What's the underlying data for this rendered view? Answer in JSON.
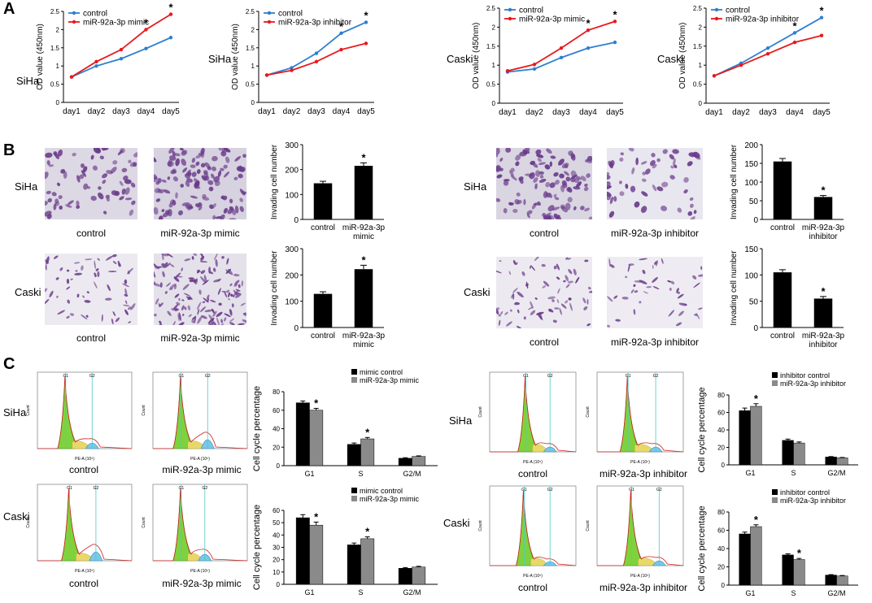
{
  "panels": {
    "A": "A",
    "B": "B",
    "C": "C"
  },
  "chart_data": [
    {
      "id": "lineA1",
      "type": "line",
      "row_label": "SiHa",
      "ylabel": "OD value (450nm)",
      "categories": [
        "day1",
        "day2",
        "day3",
        "day4",
        "day5"
      ],
      "ylim": [
        0,
        2.5
      ],
      "yticks": [
        "0",
        "0.5",
        "1",
        "1.5",
        "2",
        "2.5"
      ],
      "series": [
        {
          "name": "control",
          "color": "#2e7fd0",
          "values": [
            0.7,
            1.0,
            1.2,
            1.48,
            1.78
          ]
        },
        {
          "name": "miR-92a-3p mimic",
          "color": "#e8191c",
          "values": [
            0.7,
            1.12,
            1.45,
            2.0,
            2.42
          ]
        }
      ],
      "sig": [
        3,
        4
      ],
      "legend": "top-left"
    },
    {
      "id": "lineA2",
      "type": "line",
      "row_label": "SiHa",
      "ylabel": "OD value (450nm)",
      "categories": [
        "day1",
        "day2",
        "day3",
        "day4",
        "day5"
      ],
      "ylim": [
        0,
        2.5
      ],
      "yticks": [
        "0",
        "0.5",
        "1",
        "1.5",
        "2",
        "2.5"
      ],
      "series": [
        {
          "name": "control",
          "color": "#2e7fd0",
          "values": [
            0.75,
            0.95,
            1.35,
            1.9,
            2.2
          ]
        },
        {
          "name": "miR-92a-3p inhibitor",
          "color": "#e8191c",
          "values": [
            0.75,
            0.88,
            1.12,
            1.45,
            1.62
          ]
        }
      ],
      "sig": [
        3,
        4
      ],
      "legend": "top-left"
    },
    {
      "id": "lineA3",
      "type": "line",
      "row_label": "Caski",
      "ylabel": "OD value (450nm)",
      "categories": [
        "day1",
        "day2",
        "day3",
        "day4",
        "day5"
      ],
      "ylim": [
        0,
        2.5
      ],
      "yticks": [
        "0",
        "0.5",
        "1",
        "1.5",
        "2",
        "2.5"
      ],
      "series": [
        {
          "name": "control",
          "color": "#2e7fd0",
          "values": [
            0.82,
            0.9,
            1.2,
            1.45,
            1.6
          ]
        },
        {
          "name": "miR-92a-3p mimic",
          "color": "#e8191c",
          "values": [
            0.85,
            1.02,
            1.45,
            1.92,
            2.15
          ]
        }
      ],
      "sig": [
        3,
        4
      ],
      "legend": "top-left"
    },
    {
      "id": "lineA4",
      "type": "line",
      "row_label": "Caski",
      "ylabel": "OD value (450nm)",
      "categories": [
        "day1",
        "day2",
        "day3",
        "day4",
        "day5"
      ],
      "ylim": [
        0,
        2.5
      ],
      "yticks": [
        "0",
        "0.5",
        "1",
        "1.5",
        "2",
        "2.5"
      ],
      "series": [
        {
          "name": "control",
          "color": "#2e7fd0",
          "values": [
            0.72,
            1.05,
            1.45,
            1.85,
            2.25
          ]
        },
        {
          "name": "miR-92a-3p inhibitor",
          "color": "#e8191c",
          "values": [
            0.72,
            1.0,
            1.3,
            1.6,
            1.78
          ]
        }
      ],
      "sig": [
        3,
        4
      ],
      "legend": "top-left"
    },
    {
      "id": "barB1",
      "type": "bar",
      "ylabel": "Invading cell number",
      "categories": [
        "control",
        "miR-92a-3p\nmimic"
      ],
      "ylim": [
        0,
        300
      ],
      "yticks": [
        "0",
        "100",
        "200",
        "300"
      ],
      "values": [
        145,
        215
      ],
      "errors": [
        8,
        12
      ],
      "sig": [
        1
      ]
    },
    {
      "id": "barB2",
      "type": "bar",
      "ylabel": "Invading cell number",
      "categories": [
        "control",
        "miR-92a-3p\ninhibitor"
      ],
      "ylim": [
        0,
        200
      ],
      "yticks": [
        "0",
        "50",
        "100",
        "150",
        "200"
      ],
      "values": [
        155,
        60
      ],
      "errors": [
        8,
        4
      ],
      "sig": [
        1
      ]
    },
    {
      "id": "barB3",
      "type": "bar",
      "ylabel": "Invading cell number",
      "categories": [
        "control",
        "miR-92a-3p\nmimic"
      ],
      "ylim": [
        0,
        300
      ],
      "yticks": [
        "0",
        "100",
        "200",
        "300"
      ],
      "values": [
        128,
        222
      ],
      "errors": [
        8,
        15
      ],
      "sig": [
        1
      ]
    },
    {
      "id": "barB4",
      "type": "bar",
      "ylabel": "Invading cell number",
      "categories": [
        "control",
        "miR-92a-3p\ninhibitor"
      ],
      "ylim": [
        0,
        150
      ],
      "yticks": [
        "0",
        "50",
        "100",
        "150"
      ],
      "values": [
        105,
        55
      ],
      "errors": [
        5,
        4
      ],
      "sig": [
        1
      ]
    },
    {
      "id": "barC1",
      "type": "grouped-bar",
      "ylabel": "Cell cycle percentage",
      "categories": [
        "G1",
        "S",
        "G2/M"
      ],
      "ylim": [
        0,
        80
      ],
      "yticks": [
        "0",
        "20",
        "40",
        "60",
        "80"
      ],
      "series": [
        {
          "name": "mimic control",
          "color": "#000000",
          "values": [
            68,
            23,
            8
          ],
          "errors": [
            2,
            1.5,
            0.6
          ]
        },
        {
          "name": "miR-92a-3p mimic",
          "color": "#8a8a8a",
          "values": [
            60,
            29,
            10
          ],
          "errors": [
            2,
            1.5,
            0.6
          ]
        }
      ],
      "sig": [
        0,
        1
      ],
      "legend": "top-right"
    },
    {
      "id": "barC2",
      "type": "grouped-bar",
      "ylabel": "Cell cycle percentage",
      "categories": [
        "G1",
        "S",
        "G2/M"
      ],
      "ylim": [
        0,
        80
      ],
      "yticks": [
        "0",
        "20",
        "40",
        "60",
        "80"
      ],
      "series": [
        {
          "name": "inhibitor control",
          "color": "#000000",
          "values": [
            62,
            28,
            9
          ],
          "errors": [
            3,
            1.5,
            0.5
          ]
        },
        {
          "name": "miR-92a-3p inhibitor",
          "color": "#8a8a8a",
          "values": [
            67,
            25,
            8
          ],
          "errors": [
            3,
            1.2,
            0.5
          ]
        }
      ],
      "sig": [
        0
      ],
      "legend": "top-right"
    },
    {
      "id": "barC3",
      "type": "grouped-bar",
      "ylabel": "Cell cycle percentage",
      "categories": [
        "G1",
        "S",
        "G2/M"
      ],
      "ylim": [
        0,
        60
      ],
      "yticks": [
        "0",
        "10",
        "20",
        "30",
        "40",
        "50",
        "60"
      ],
      "series": [
        {
          "name": "mimic control",
          "color": "#000000",
          "values": [
            54,
            32,
            13
          ],
          "errors": [
            2.5,
            1.5,
            0.6
          ]
        },
        {
          "name": "miR-92a-3p mimic",
          "color": "#8a8a8a",
          "values": [
            48,
            37,
            14
          ],
          "errors": [
            2.5,
            1.5,
            0.6
          ]
        }
      ],
      "sig": [
        0,
        1
      ],
      "legend": "top-right"
    },
    {
      "id": "barC4",
      "type": "grouped-bar",
      "ylabel": "Cell cycle percentage",
      "categories": [
        "G1",
        "S",
        "G2/M"
      ],
      "ylim": [
        0,
        80
      ],
      "yticks": [
        "0",
        "20",
        "40",
        "60",
        "80"
      ],
      "series": [
        {
          "name": "inhibitor control",
          "color": "#000000",
          "values": [
            56,
            33,
            11
          ],
          "errors": [
            2,
            1.2,
            0.5
          ]
        },
        {
          "name": "miR-92a-3p inhibitor",
          "color": "#8a8a8a",
          "values": [
            64,
            28,
            10
          ],
          "errors": [
            2,
            1.2,
            0.5
          ]
        }
      ],
      "sig": [
        0,
        1
      ],
      "legend": "top-right"
    }
  ],
  "panel_B": {
    "rows": [
      {
        "label": "SiHa",
        "captions": [
          "control",
          "miR-92a-3p mimic"
        ]
      },
      {
        "label": "Caski",
        "captions": [
          "control",
          "miR-92a-3p mimic"
        ]
      },
      {
        "label": "SiHa",
        "captions": [
          "control",
          "miR-92a-3p inhibitor"
        ]
      },
      {
        "label": "Caski",
        "captions": [
          "control",
          "miR-92a-3p inhibitor"
        ]
      }
    ]
  },
  "panel_C": {
    "rows": [
      {
        "label": "SiHa",
        "captions": [
          "control",
          "miR-92a-3p mimic"
        ]
      },
      {
        "label": "Caski",
        "captions": [
          "control",
          "miR-92a-3p mimic"
        ]
      },
      {
        "label": "SiHa",
        "captions": [
          "control",
          "miR-92a-3p inhibitor"
        ]
      },
      {
        "label": "Caski",
        "captions": [
          "control",
          "miR-92a-3p inhibitor"
        ]
      }
    ],
    "flow": {
      "g1": "G1",
      "g2": "G2",
      "xlabel": "PE-A (10⁵)",
      "ylabel": "Count"
    }
  },
  "colors": {
    "blue": "#2e7fd0",
    "red": "#e8191c",
    "black": "#000000",
    "grey": "#8a8a8a",
    "cell": "#6a3a8a",
    "bg_light": "#e8e6ee"
  }
}
